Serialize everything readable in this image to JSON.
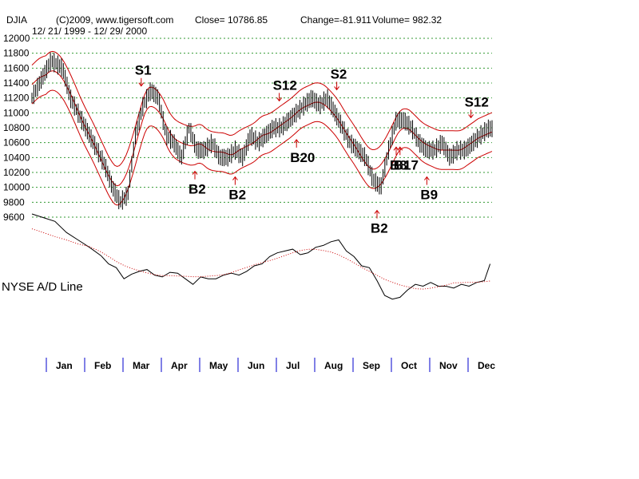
{
  "header": {
    "symbol": "DJIA",
    "copyright": "(C)2009, www.tigersoft.com",
    "close": "Close=  10786.85",
    "change": "Change=-81.911",
    "volume": "Volume= 982.32",
    "date_range": "12/ 21/ 1999 - 12/ 29/ 2000"
  },
  "indicator_label": "NYSE A/D Line",
  "colors": {
    "price_bars": "#000000",
    "bands": "#cc0000",
    "signals": "#cc0000",
    "grid": "#339933",
    "month_ticks": "#0000cc",
    "ad_line": "#000000",
    "ad_ma": "#cc0000"
  },
  "chart_data": {
    "type": "line",
    "title": "",
    "ylim": [
      9600,
      12000
    ],
    "y_ticks": [
      "12000",
      "11800",
      "11600",
      "11400",
      "11200",
      "11000",
      "10800",
      "10600",
      "10400",
      "10200",
      "10000",
      "9800",
      "9600"
    ],
    "months": [
      "Jan",
      "Feb",
      "Mar",
      "Apr",
      "May",
      "Jun",
      "Jul",
      "Aug",
      "Sep",
      "Oct",
      "Nov",
      "Dec"
    ],
    "grid": true,
    "series": [
      {
        "name": "",
        "x": [
          0,
          0.3,
          0.5,
          0.8,
          1.0,
          1.3,
          1.6,
          1.9,
          2.1,
          2.3,
          2.5,
          2.7,
          2.9,
          3.1,
          3.3,
          3.5,
          3.7,
          3.9,
          4.1,
          4.3,
          4.5,
          4.7,
          4.9,
          5.1,
          5.3,
          5.5,
          5.7,
          5.9,
          6.1,
          6.3,
          6.5,
          6.7,
          6.9,
          7.1,
          7.3,
          7.5,
          7.7,
          7.9,
          8.1,
          8.3,
          8.5,
          8.7,
          8.9,
          9.1,
          9.3,
          9.5,
          9.7,
          9.9,
          10.1,
          10.3,
          10.5,
          10.7,
          10.9,
          11.1,
          11.3,
          11.5,
          11.7,
          11.9
        ],
        "values": [
          11200,
          11500,
          11700,
          11600,
          11200,
          10900,
          10600,
          10300,
          10000,
          9800,
          9900,
          10700,
          11100,
          11300,
          11200,
          10700,
          10600,
          10400,
          10800,
          10500,
          10500,
          10600,
          10400,
          10400,
          10500,
          10400,
          10700,
          10600,
          10700,
          10800,
          10800,
          10900,
          11000,
          11100,
          11200,
          11100,
          11200,
          11000,
          10800,
          10600,
          10500,
          10400,
          10100,
          10000,
          10500,
          10900,
          10900,
          10800,
          10600,
          10500,
          10500,
          10600,
          10400,
          10500,
          10500,
          10600,
          10700,
          10787
        ]
      }
    ],
    "ad_line": {
      "x": [
        0,
        0.3,
        0.6,
        0.9,
        1.2,
        1.5,
        1.8,
        2.0,
        2.2,
        2.4,
        2.6,
        2.8,
        3.0,
        3.2,
        3.4,
        3.6,
        3.8,
        4.0,
        4.2,
        4.4,
        4.6,
        4.8,
        5.0,
        5.2,
        5.4,
        5.6,
        5.8,
        6.0,
        6.2,
        6.4,
        6.6,
        6.8,
        7.0,
        7.2,
        7.4,
        7.6,
        7.8,
        8.0,
        8.2,
        8.4,
        8.6,
        8.8,
        9.0,
        9.2,
        9.4,
        9.6,
        9.8,
        10.0,
        10.2,
        10.4,
        10.6,
        10.8,
        11.0,
        11.2,
        11.4,
        11.6,
        11.8,
        11.95
      ],
      "values": [
        100,
        96,
        92,
        80,
        72,
        64,
        55,
        46,
        42,
        30,
        35,
        38,
        40,
        34,
        32,
        37,
        36,
        30,
        24,
        32,
        30,
        30,
        34,
        36,
        34,
        38,
        44,
        46,
        54,
        58,
        60,
        62,
        56,
        58,
        64,
        66,
        70,
        72,
        60,
        54,
        44,
        42,
        28,
        12,
        8,
        10,
        18,
        24,
        22,
        26,
        22,
        22,
        20,
        24,
        22,
        26,
        28,
        46
      ]
    },
    "signals": [
      {
        "label": "S1",
        "x": 2.85,
        "type": "sell"
      },
      {
        "label": "S2",
        "x": 7.95,
        "type": "sell"
      },
      {
        "label": "S12",
        "x": 6.45,
        "type": "sell"
      },
      {
        "label": "S12",
        "x": 11.45,
        "type": "sell"
      },
      {
        "label": "B2",
        "x": 4.25,
        "type": "buy"
      },
      {
        "label": "B2",
        "x": 5.3,
        "type": "buy"
      },
      {
        "label": "B20",
        "x": 6.9,
        "type": "buy"
      },
      {
        "label": "B2",
        "x": 9.0,
        "type": "buy"
      },
      {
        "label": "B8",
        "x": 9.5,
        "type": "buy"
      },
      {
        "label": "B17",
        "x": 9.6,
        "type": "buy"
      },
      {
        "label": "B9",
        "x": 10.3,
        "type": "buy"
      }
    ]
  }
}
